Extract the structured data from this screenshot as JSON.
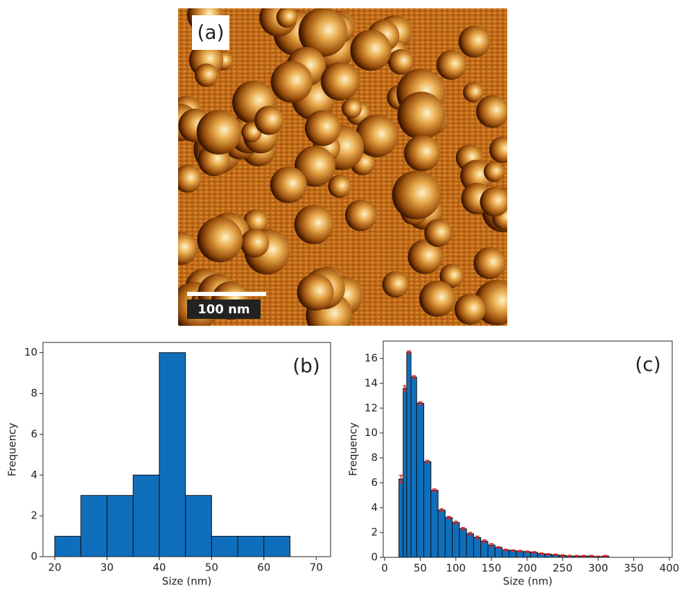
{
  "panel_a": {
    "label": "(a)",
    "scale_bar": "100 nm"
  },
  "chart_data": [
    {
      "type": "histogram",
      "panel_label": "(b)",
      "xlabel": "Size (nm)",
      "ylabel": "Frequency",
      "bins": [
        20,
        25,
        30,
        35,
        40,
        45,
        50,
        55,
        60,
        65,
        70
      ],
      "values": [
        1,
        3,
        3,
        4,
        10,
        3,
        1,
        1,
        1,
        0
      ],
      "color": "#0f6fbd",
      "xlim": [
        17.75,
        72.75
      ],
      "ylim": [
        0,
        10.5
      ],
      "xticks": [
        20,
        30,
        40,
        50,
        60,
        70
      ],
      "yticks": [
        0,
        2,
        4,
        6,
        8,
        10
      ]
    },
    {
      "type": "histogram",
      "panel_label": "(c)",
      "xlabel": "Size (nm)",
      "ylabel": "Frequency",
      "bins": [
        20,
        26,
        31,
        37,
        45,
        55,
        65,
        75,
        85,
        95,
        105,
        115,
        125,
        135,
        145,
        155,
        165,
        175,
        185,
        195,
        205,
        215,
        225,
        235,
        245,
        255,
        265,
        275,
        285,
        295,
        305,
        315
      ],
      "values": [
        6.3,
        13.6,
        16.5,
        14.5,
        12.4,
        7.7,
        5.4,
        3.8,
        3.2,
        2.8,
        2.3,
        1.9,
        1.6,
        1.3,
        1.0,
        0.8,
        0.6,
        0.55,
        0.5,
        0.45,
        0.4,
        0.3,
        0.25,
        0.2,
        0.15,
        0.1,
        0.1,
        0.1,
        0.1,
        0.05,
        0.1
      ],
      "errors": [
        0.3,
        0.2,
        0.1,
        0.1,
        0.1,
        0.1,
        0.1,
        0.1,
        0.1,
        0.1,
        0.1,
        0.1,
        0.1,
        0.1,
        0.1,
        0.05,
        0.05,
        0.05,
        0.05,
        0.05,
        0.05,
        0.05,
        0.05,
        0.05,
        0.05,
        0.05,
        0.05,
        0.05,
        0.05,
        0.05,
        0.05
      ],
      "error_color": "#e02020",
      "color": "#0f6fbd",
      "xlim": [
        -2,
        404
      ],
      "ylim": [
        0,
        17.4
      ],
      "xticks": [
        0,
        50,
        100,
        150,
        200,
        250,
        300,
        350,
        400
      ],
      "yticks": [
        0,
        2,
        4,
        6,
        8,
        10,
        12,
        14,
        16
      ]
    }
  ]
}
